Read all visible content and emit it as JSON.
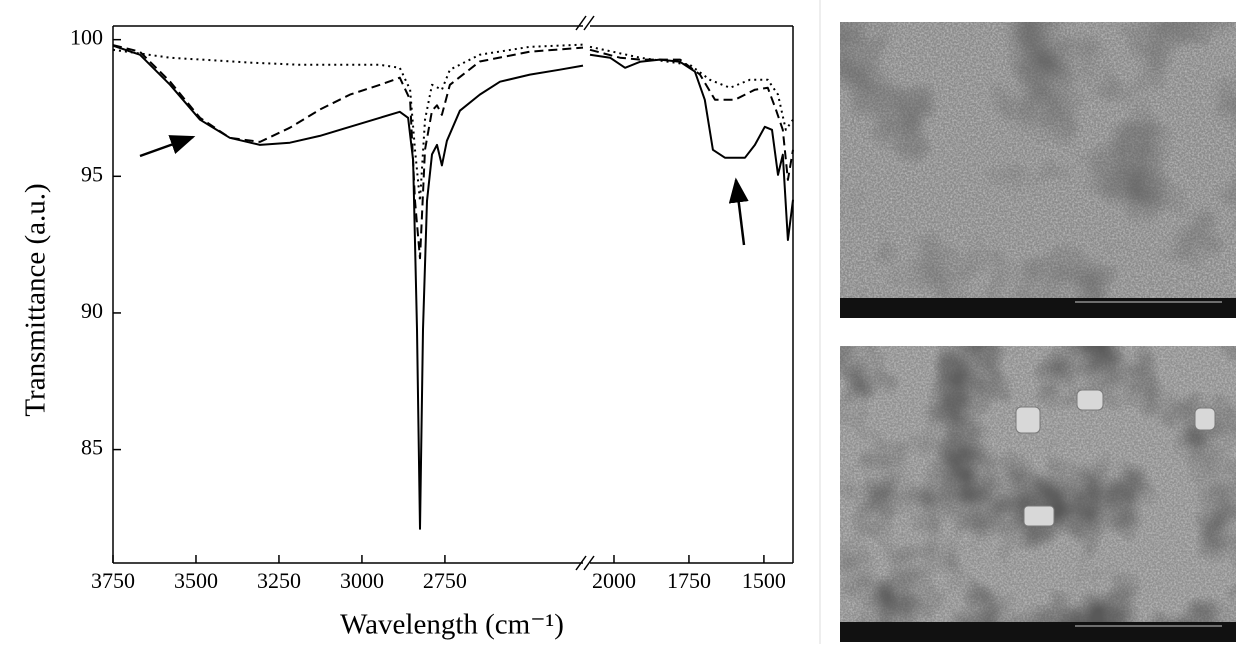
{
  "chart_data": [
    {
      "type": "line",
      "ylabel": "Transmittance (a.u.)",
      "xlabel": "Wavelength (cm⁻¹)",
      "xlim": [
        3750,
        2334
      ],
      "xticks": [
        3750,
        3500,
        3250,
        3000,
        2750
      ],
      "ylim": [
        80.85,
        100.5
      ],
      "yticks": [
        85,
        90,
        95,
        100
      ],
      "series": [
        {
          "color": "#000000",
          "dash": "solid",
          "x": [
            3750,
            3669,
            3578,
            3488,
            3398,
            3307,
            3217,
            3127,
            3036,
            2946,
            2886,
            2861,
            2846,
            2834,
            2825,
            2816,
            2804,
            2789,
            2774,
            2759,
            2744,
            2705,
            2645,
            2584,
            2494,
            2404,
            2334
          ],
          "values": [
            99.78,
            99.45,
            98.35,
            97.07,
            96.41,
            96.15,
            96.23,
            96.48,
            96.81,
            97.14,
            97.36,
            97.14,
            95.6,
            89.4,
            82.1,
            89.4,
            94.1,
            95.8,
            96.15,
            95.4,
            96.3,
            97.4,
            97.99,
            98.46,
            98.72,
            98.9,
            99.05
          ]
        },
        {
          "color": "#000000",
          "dash": "dashed",
          "x": [
            3750,
            3669,
            3578,
            3488,
            3398,
            3307,
            3217,
            3127,
            3036,
            2946,
            2886,
            2855,
            2840,
            2825,
            2810,
            2789,
            2774,
            2759,
            2735,
            2645,
            2494,
            2334
          ],
          "values": [
            99.8,
            99.56,
            98.46,
            97.14,
            96.41,
            96.26,
            96.78,
            97.44,
            97.99,
            98.35,
            98.61,
            97.8,
            94.1,
            92.0,
            95.97,
            97.4,
            97.6,
            97.25,
            98.35,
            99.2,
            99.56,
            99.71
          ]
        },
        {
          "color": "#000000",
          "dash": "dotted",
          "x": [
            3750,
            3578,
            3337,
            3187,
            2946,
            2886,
            2855,
            2840,
            2825,
            2810,
            2789,
            2759,
            2735,
            2645,
            2494,
            2334
          ],
          "values": [
            99.63,
            99.34,
            99.16,
            99.08,
            99.08,
            98.97,
            98.17,
            95.97,
            94.1,
            97.07,
            98.35,
            98.17,
            98.9,
            99.45,
            99.74,
            99.82
          ]
        }
      ]
    },
    {
      "type": "line",
      "xlim": [
        2080,
        1403
      ],
      "xticks": [
        2000,
        1750,
        1500
      ],
      "ylim": [
        80.85,
        100.5
      ],
      "series": [
        {
          "color": "#000000",
          "dash": "solid",
          "x": [
            2080,
            2013,
            1963,
            1913,
            1847,
            1780,
            1730,
            1697,
            1670,
            1630,
            1563,
            1530,
            1497,
            1473,
            1453,
            1437,
            1420,
            1403
          ],
          "values": [
            99.45,
            99.34,
            98.97,
            99.19,
            99.27,
            99.19,
            98.83,
            97.8,
            95.97,
            95.68,
            95.68,
            96.15,
            96.81,
            96.7,
            95.05,
            95.79,
            92.67,
            94.14
          ]
        },
        {
          "color": "#000000",
          "dash": "dashed",
          "x": [
            2080,
            1980,
            1913,
            1780,
            1713,
            1663,
            1597,
            1530,
            1487,
            1460,
            1437,
            1420,
            1403
          ],
          "values": [
            99.63,
            99.34,
            99.27,
            99.27,
            98.72,
            97.8,
            97.8,
            98.17,
            98.24,
            97.44,
            96.7,
            94.87,
            95.97
          ]
        },
        {
          "color": "#000000",
          "dash": "dotted",
          "x": [
            2080,
            1913,
            1747,
            1680,
            1613,
            1547,
            1487,
            1453,
            1427,
            1403
          ],
          "values": [
            99.74,
            99.34,
            99.08,
            98.53,
            98.24,
            98.53,
            98.53,
            97.99,
            96.7,
            97.07
          ]
        }
      ]
    }
  ]
}
